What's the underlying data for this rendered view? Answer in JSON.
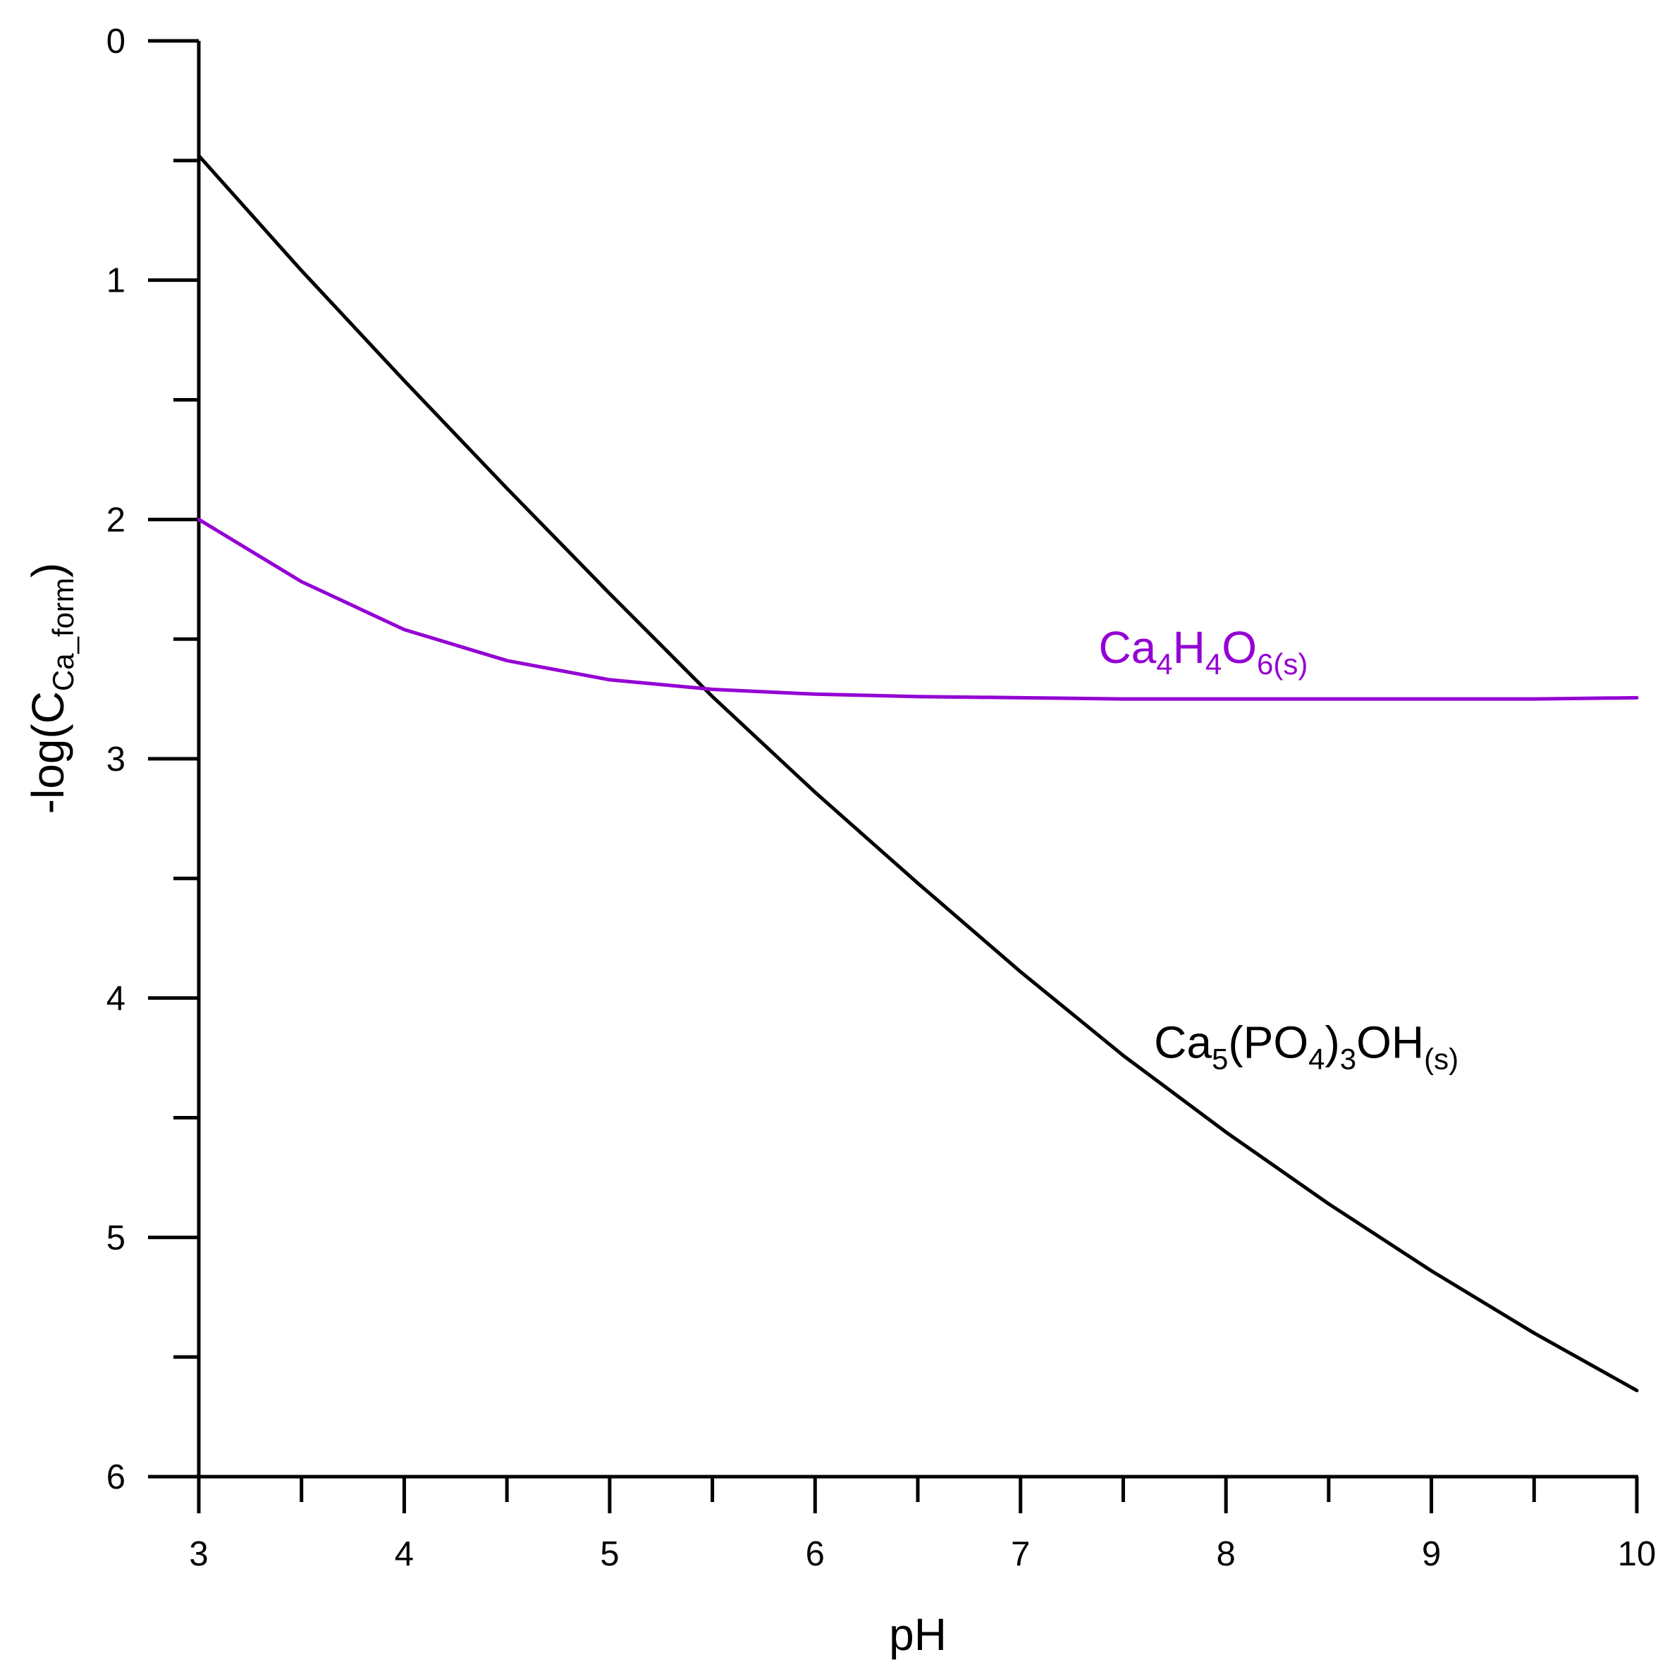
{
  "chart_data": {
    "type": "line",
    "title": "",
    "xlabel": "pH",
    "ylabel": {
      "base": "-log(C",
      "sub": "Ca_form",
      "close": ")"
    },
    "xlim": [
      3,
      10
    ],
    "ylim": [
      0,
      6
    ],
    "y_inverted": true,
    "x_ticks": [
      3,
      4,
      5,
      6,
      7,
      8,
      9,
      10
    ],
    "x_tick_labels": [
      "3",
      "4",
      "5",
      "6",
      "7",
      "8",
      "9",
      "10"
    ],
    "x_minor_ticks": [
      3.5,
      4.5,
      5.5,
      6.5,
      7.5,
      8.5,
      9.5
    ],
    "y_ticks": [
      0,
      1,
      2,
      3,
      4,
      5,
      6
    ],
    "y_tick_labels": [
      "0",
      "1",
      "2",
      "3",
      "4",
      "5",
      "6"
    ],
    "y_minor_ticks": [
      0.5,
      1.5,
      2.5,
      3.5,
      4.5,
      5.5
    ],
    "grid": false,
    "series": [
      {
        "name": "Ca5(PO4)3OH(s)",
        "color": "#000000",
        "label_parts": [
          {
            "t": "Ca",
            "s": "5"
          },
          {
            "t": "(PO",
            "s": "4"
          },
          {
            "t": ")",
            "s": "3"
          },
          {
            "t": "OH",
            "s": "(s)"
          }
        ],
        "x": [
          3,
          3.5,
          4,
          4.5,
          5,
          5.5,
          6,
          6.5,
          7,
          7.5,
          8,
          8.5,
          9,
          9.5,
          10
        ],
        "values": [
          0.48,
          0.96,
          1.42,
          1.87,
          2.31,
          2.74,
          3.14,
          3.52,
          3.89,
          4.24,
          4.56,
          4.86,
          5.14,
          5.4,
          5.64
        ]
      },
      {
        "name": "Ca4H4O6(s)",
        "color": "#9400d3",
        "label_parts": [
          {
            "t": "Ca",
            "s": "4"
          },
          {
            "t": "H",
            "s": "4"
          },
          {
            "t": "O",
            "s": "6(s)"
          }
        ],
        "x": [
          3,
          3.5,
          4,
          4.5,
          5,
          5.5,
          6,
          6.5,
          7,
          7.5,
          8,
          8.5,
          9,
          9.5,
          10
        ],
        "values": [
          2.0,
          2.26,
          2.46,
          2.59,
          2.67,
          2.71,
          2.73,
          2.74,
          2.745,
          2.75,
          2.75,
          2.75,
          2.75,
          2.75,
          2.745
        ]
      }
    ]
  }
}
